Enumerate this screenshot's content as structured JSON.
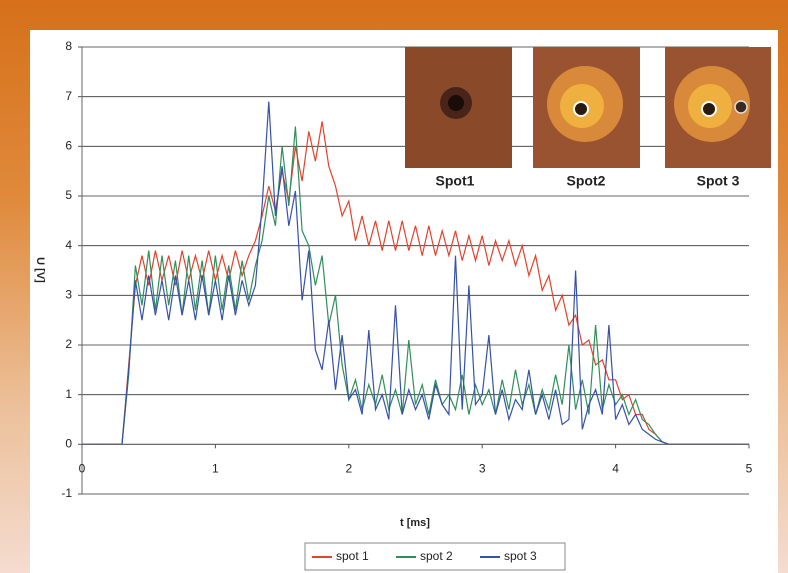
{
  "chart_data": {
    "type": "line",
    "xlabel": "t [ms]",
    "ylabel": "U [V]",
    "annotations": [
      "Spot1",
      "Spot2",
      "Spot 3"
    ],
    "xlim": [
      0,
      5
    ],
    "xticks": [
      0,
      1,
      2,
      3,
      4,
      5
    ],
    "ylim": [
      -1,
      8
    ],
    "yticks": [
      -1,
      0,
      1,
      2,
      3,
      4,
      5,
      6,
      7,
      8
    ],
    "grid": true,
    "legend": "bottom",
    "x": [
      0,
      0.05,
      0.1,
      0.15,
      0.2,
      0.25,
      0.3,
      0.35,
      0.4,
      0.45,
      0.5,
      0.55,
      0.6,
      0.65,
      0.7,
      0.75,
      0.8,
      0.85,
      0.9,
      0.95,
      1,
      1.05,
      1.1,
      1.15,
      1.2,
      1.25,
      1.3,
      1.35,
      1.4,
      1.45,
      1.5,
      1.55,
      1.6,
      1.65,
      1.7,
      1.75,
      1.8,
      1.85,
      1.9,
      1.95,
      2,
      2.05,
      2.1,
      2.15,
      2.2,
      2.25,
      2.3,
      2.35,
      2.4,
      2.45,
      2.5,
      2.55,
      2.6,
      2.65,
      2.7,
      2.75,
      2.8,
      2.85,
      2.9,
      2.95,
      3,
      3.05,
      3.1,
      3.15,
      3.2,
      3.25,
      3.3,
      3.35,
      3.4,
      3.45,
      3.5,
      3.55,
      3.6,
      3.65,
      3.7,
      3.75,
      3.8,
      3.85,
      3.9,
      3.95,
      4,
      4.05,
      4.1,
      4.15,
      4.2,
      4.25,
      4.3,
      4.35,
      4.4,
      4.45,
      4.5,
      4.55,
      4.6,
      4.65,
      4.7,
      4.75,
      4.8,
      4.85,
      4.9,
      4.95,
      5
    ],
    "series": [
      {
        "name": "spot 1",
        "color": "#e4422b",
        "values": [
          0,
          0,
          0,
          0,
          0,
          0,
          0,
          1.6,
          3.2,
          3.8,
          3.2,
          3.9,
          3.3,
          3.8,
          3.2,
          3.9,
          3.3,
          3.8,
          3.3,
          3.9,
          3.3,
          3.8,
          3.3,
          3.9,
          3.4,
          3.8,
          4.1,
          4.6,
          5.2,
          4.7,
          5.5,
          4.9,
          6.0,
          5.3,
          6.3,
          5.7,
          6.5,
          5.6,
          5.2,
          4.6,
          4.9,
          4.1,
          4.6,
          4.0,
          4.5,
          3.9,
          4.5,
          3.9,
          4.5,
          3.9,
          4.4,
          3.8,
          4.4,
          3.8,
          4.3,
          3.8,
          4.3,
          3.7,
          4.2,
          3.7,
          4.2,
          3.6,
          4.1,
          3.7,
          4.1,
          3.6,
          4.0,
          3.4,
          3.8,
          3.1,
          3.4,
          2.7,
          3.0,
          2.4,
          2.6,
          2.0,
          2.1,
          1.6,
          1.7,
          1.3,
          1.3,
          0.9,
          1.0,
          0.6,
          0.6,
          0.3,
          0.2,
          0.05,
          0,
          0,
          0,
          0,
          0,
          0,
          0,
          0,
          0,
          0,
          0,
          0,
          0
        ]
      },
      {
        "name": "spot 2",
        "color": "#2f8f5a",
        "values": [
          0,
          0,
          0,
          0,
          0,
          0,
          0,
          1.4,
          3.6,
          2.8,
          3.9,
          2.7,
          3.8,
          2.8,
          3.7,
          2.6,
          3.8,
          2.7,
          3.7,
          2.6,
          3.8,
          2.7,
          3.6,
          2.7,
          3.7,
          2.9,
          3.6,
          4.1,
          5.0,
          4.4,
          6.0,
          4.8,
          6.4,
          4.3,
          4.0,
          3.2,
          3.8,
          2.4,
          3.0,
          1.6,
          0.9,
          1.3,
          0.7,
          1.2,
          0.8,
          1.4,
          0.7,
          1.1,
          0.6,
          2.1,
          0.8,
          1.2,
          0.6,
          1.3,
          0.8,
          1.0,
          0.7,
          1.4,
          0.6,
          1.2,
          0.8,
          1.1,
          0.6,
          1.3,
          0.7,
          1.5,
          0.8,
          1.2,
          0.6,
          1.1,
          0.7,
          1.4,
          0.8,
          2.0,
          0.7,
          1.3,
          0.6,
          2.4,
          0.7,
          1.2,
          0.8,
          1.0,
          0.6,
          0.9,
          0.5,
          0.4,
          0.2,
          0.05,
          0,
          0,
          0,
          0,
          0,
          0,
          0,
          0,
          0,
          0,
          0,
          0,
          0
        ]
      },
      {
        "name": "spot 3",
        "color": "#3550ad",
        "values": [
          0,
          0,
          0,
          0,
          0,
          0,
          0,
          1.5,
          3.3,
          2.5,
          3.4,
          2.6,
          3.3,
          2.5,
          3.4,
          2.6,
          3.3,
          2.5,
          3.4,
          2.6,
          3.3,
          2.5,
          3.4,
          2.6,
          3.3,
          2.8,
          3.2,
          4.8,
          6.9,
          4.6,
          5.6,
          4.4,
          5.1,
          2.9,
          3.9,
          1.9,
          1.5,
          2.5,
          1.1,
          2.2,
          0.9,
          1.1,
          0.6,
          2.3,
          0.7,
          1.0,
          0.5,
          2.8,
          0.6,
          1.1,
          0.7,
          1.0,
          0.5,
          1.2,
          0.8,
          0.6,
          3.8,
          0.7,
          3.2,
          0.8,
          1.0,
          2.2,
          0.6,
          1.1,
          0.5,
          0.9,
          0.7,
          1.5,
          0.6,
          1.0,
          0.5,
          1.1,
          0.4,
          0.5,
          3.5,
          0.3,
          0.8,
          1.1,
          0.6,
          2.4,
          0.5,
          0.8,
          0.4,
          0.6,
          0.3,
          0.2,
          0.1,
          0.05,
          0,
          0,
          0,
          0,
          0,
          0,
          0,
          0,
          0,
          0,
          0,
          0,
          0
        ]
      }
    ]
  }
}
